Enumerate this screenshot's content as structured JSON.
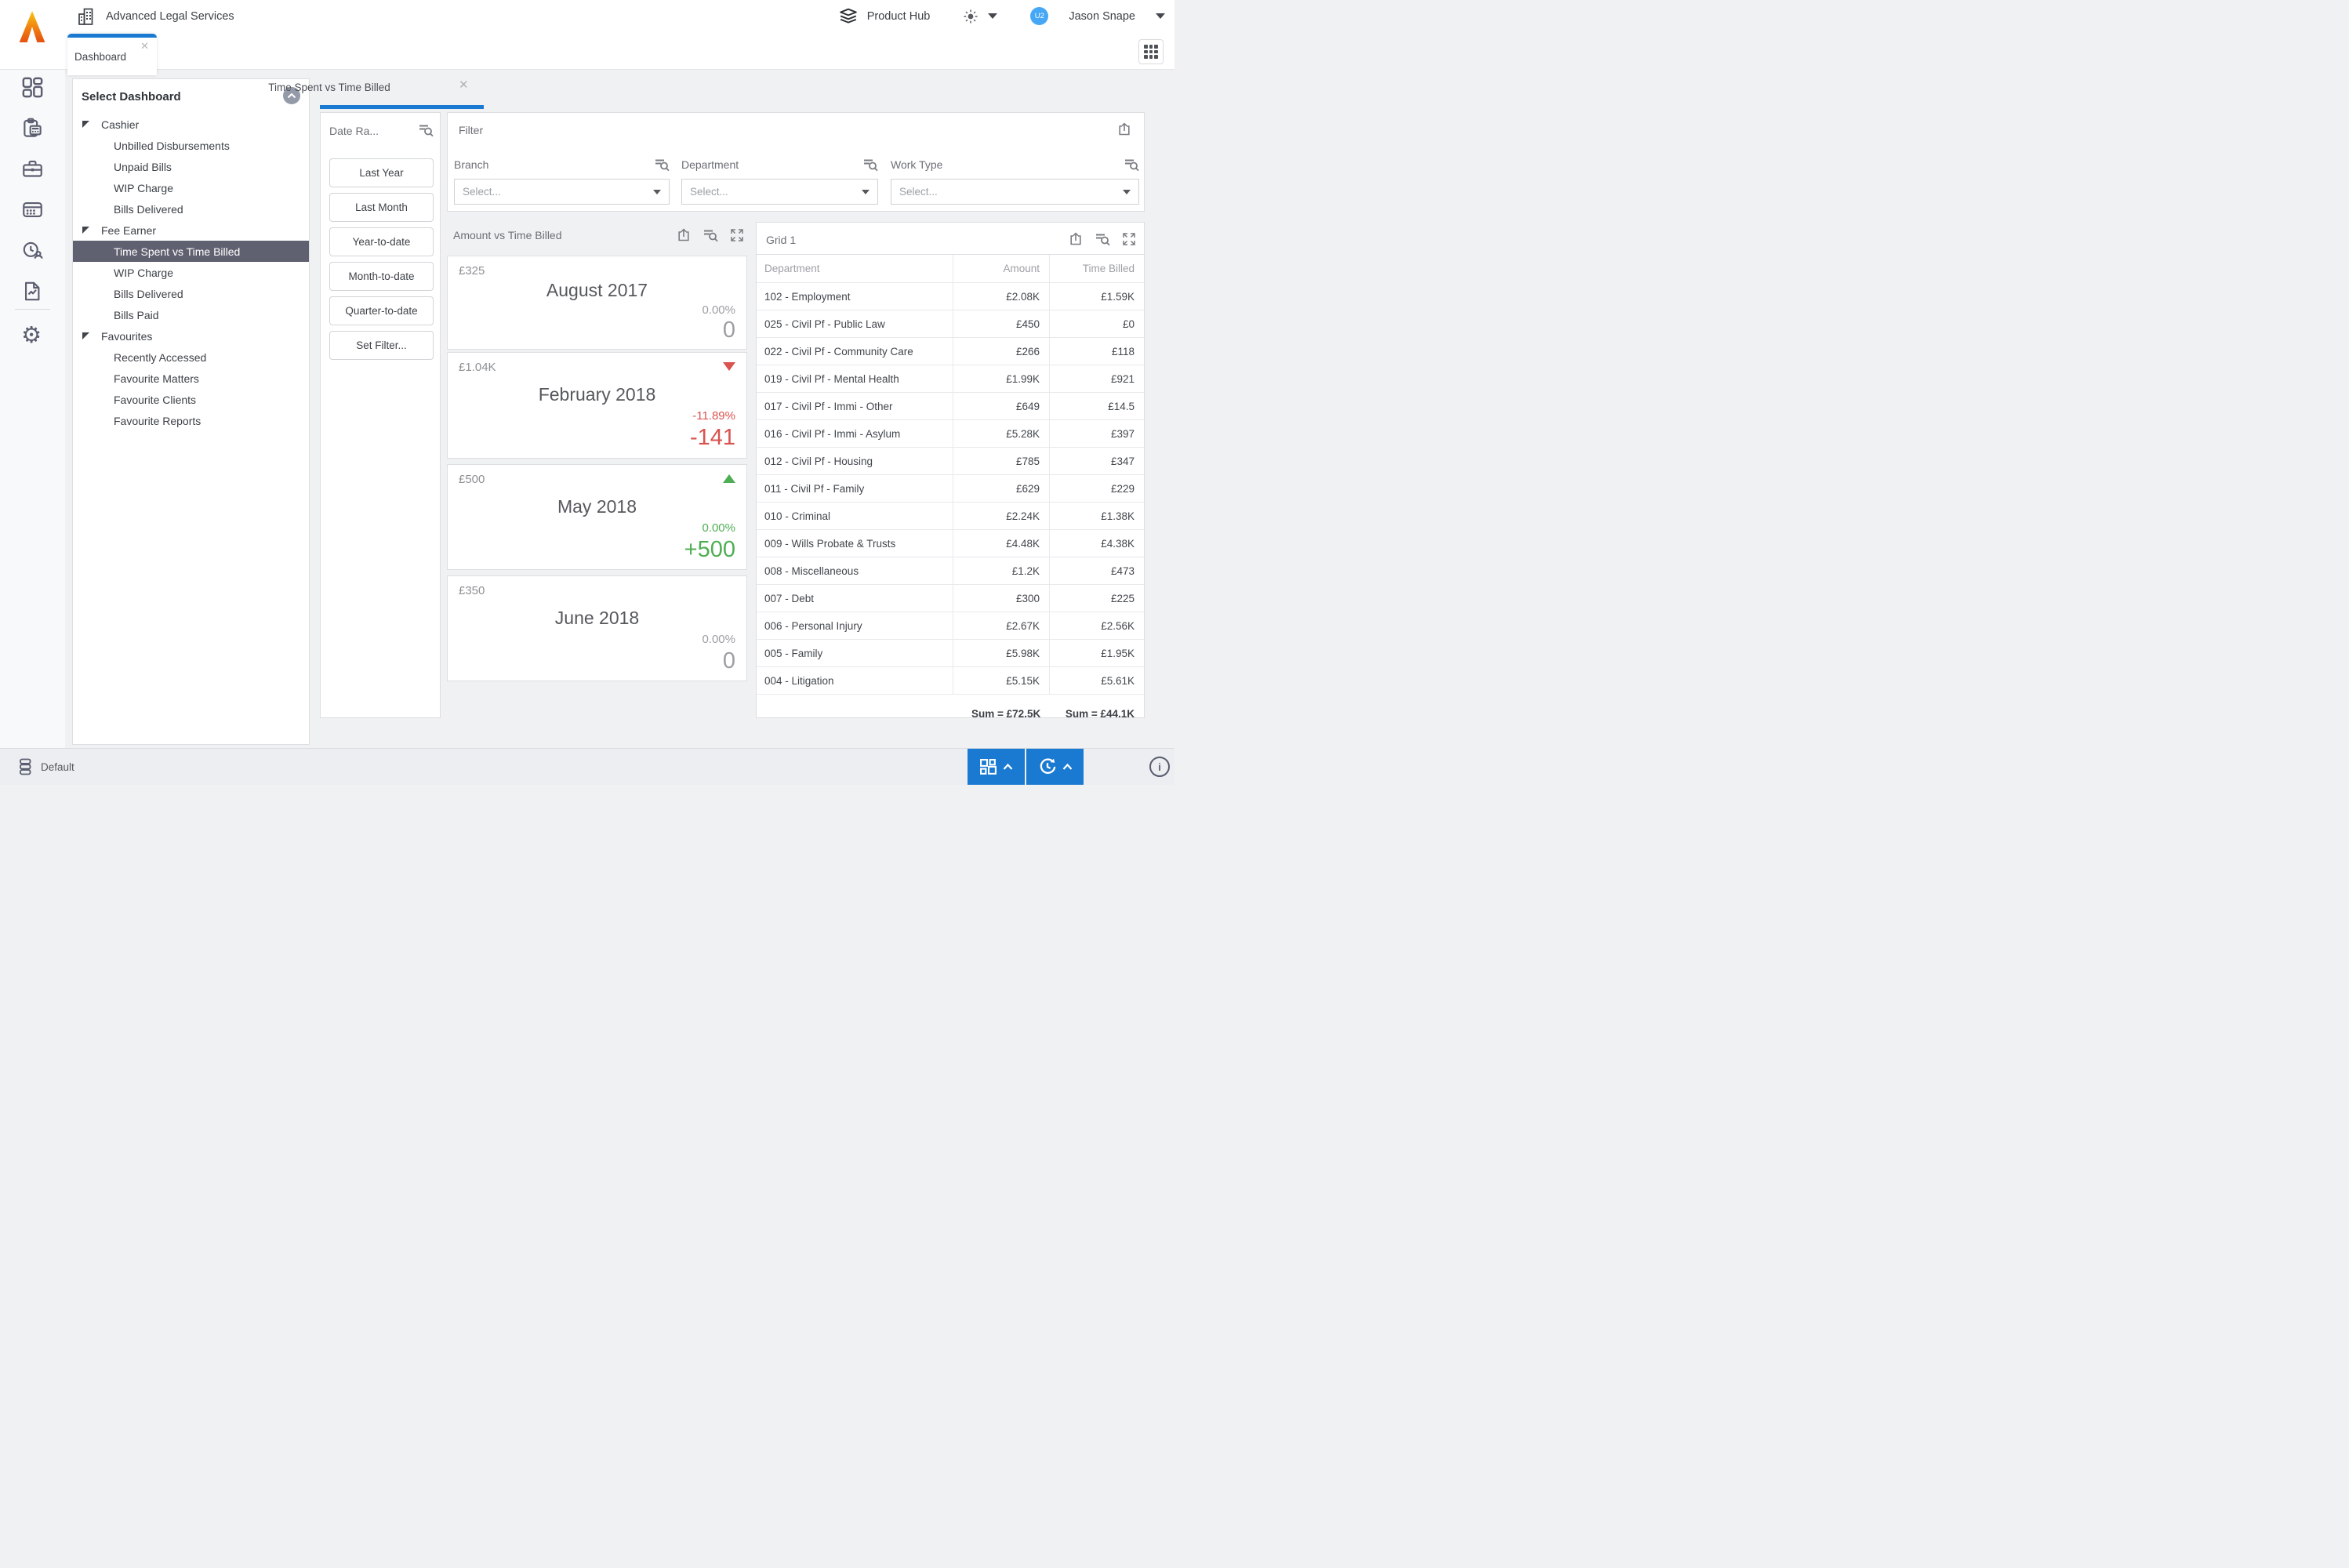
{
  "header": {
    "app_title": "Advanced Legal Services",
    "product_hub_label": "Product Hub",
    "user_initials": "U2",
    "user_name": "Jason Snape",
    "main_tab": "Dashboard"
  },
  "dashboard_selector": {
    "title": "Select Dashboard",
    "tree": [
      {
        "label": "Cashier",
        "type": "group"
      },
      {
        "label": "Unbilled Disbursements",
        "type": "item"
      },
      {
        "label": "Unpaid Bills",
        "type": "item"
      },
      {
        "label": "WIP Charge",
        "type": "item"
      },
      {
        "label": "Bills Delivered",
        "type": "item"
      },
      {
        "label": "Fee Earner",
        "type": "group"
      },
      {
        "label": "Time Spent vs Time Billed",
        "type": "item",
        "selected": true
      },
      {
        "label": "WIP Charge",
        "type": "item"
      },
      {
        "label": "Bills Delivered",
        "type": "item"
      },
      {
        "label": "Bills Paid",
        "type": "item"
      },
      {
        "label": "Favourites",
        "type": "group"
      },
      {
        "label": "Recently Accessed",
        "type": "item"
      },
      {
        "label": "Favourite Matters",
        "type": "item"
      },
      {
        "label": "Favourite Clients",
        "type": "item"
      },
      {
        "label": "Favourite Reports",
        "type": "item"
      }
    ]
  },
  "workspace_tab": {
    "label": "Time Spent vs Time Billed"
  },
  "date_range": {
    "title": "Date Ra...",
    "buttons": [
      "Last Year",
      "Last Month",
      "Year-to-date",
      "Month-to-date",
      "Quarter-to-date",
      "Set Filter..."
    ]
  },
  "filter": {
    "title": "Filter",
    "placeholder": "Select...",
    "fields": [
      "Branch",
      "Department",
      "Work Type"
    ]
  },
  "kpi_panel": {
    "title": "Amount vs Time Billed",
    "cards": [
      {
        "amount": "£325",
        "month": "August 2017",
        "percent": "0.00%",
        "delta": "0",
        "trend": "neutral"
      },
      {
        "amount": "£1.04K",
        "month": "February 2018",
        "percent": "-11.89%",
        "delta": "-141",
        "trend": "down"
      },
      {
        "amount": "£500",
        "month": "May 2018",
        "percent": "0.00%",
        "delta": "+500",
        "trend": "up"
      },
      {
        "amount": "£350",
        "month": "June 2018",
        "percent": "0.00%",
        "delta": "0",
        "trend": "neutral"
      }
    ]
  },
  "grid_panel": {
    "title": "Grid 1",
    "columns": [
      "Department",
      "Amount",
      "Time Billed"
    ],
    "rows": [
      [
        "102 - Employment",
        "£2.08K",
        "£1.59K"
      ],
      [
        "025 - Civil Pf - Public Law",
        "£450",
        "£0"
      ],
      [
        "022 - Civil Pf - Community Care",
        "£266",
        "£118"
      ],
      [
        "019 - Civil Pf - Mental Health",
        "£1.99K",
        "£921"
      ],
      [
        "017 - Civil Pf - Immi - Other",
        "£649",
        "£14.5"
      ],
      [
        "016 - Civil Pf - Immi - Asylum",
        "£5.28K",
        "£397"
      ],
      [
        "012 - Civil Pf - Housing",
        "£785",
        "£347"
      ],
      [
        "011 - Civil Pf - Family",
        "£629",
        "£229"
      ],
      [
        "010 - Criminal",
        "£2.24K",
        "£1.38K"
      ],
      [
        "009 - Wills Probate & Trusts",
        "£4.48K",
        "£4.38K"
      ],
      [
        "008 - Miscellaneous",
        "£1.2K",
        "£473"
      ],
      [
        "007 - Debt",
        "£300",
        "£225"
      ],
      [
        "006 - Personal Injury",
        "£2.67K",
        "£2.56K"
      ],
      [
        "005 - Family",
        "£5.98K",
        "£1.95K"
      ],
      [
        "004 - Litigation",
        "£5.15K",
        "£5.61K"
      ]
    ],
    "sum_amount": "Sum = £72.5K",
    "sum_time_billed": "Sum = £44.1K"
  },
  "status_bar": {
    "layout_label": "Default"
  },
  "icons": {
    "header": [
      "building-icon",
      "layers-icon",
      "sun-icon",
      "caret-down-icon",
      "avatar",
      "apps-grid-icon"
    ],
    "rail": [
      "dashboard-icon",
      "clipboard-calculator-icon",
      "briefcase-icon",
      "panel-dots-icon",
      "clock-user-icon",
      "report-document-icon",
      "gear-icon"
    ],
    "panels": [
      "export-icon",
      "filter-search-icon",
      "fullscreen-icon",
      "close-icon",
      "collapse-circle-icon"
    ],
    "status": [
      "stack-icon",
      "tiles-chevron-icon",
      "history-chevron-icon",
      "info-icon"
    ]
  },
  "colors": {
    "accent": "#1a7ad1",
    "selected_row": "#5f6170",
    "negative": "#d9534f",
    "positive": "#4fae54",
    "avatar": "#45a7f5"
  }
}
